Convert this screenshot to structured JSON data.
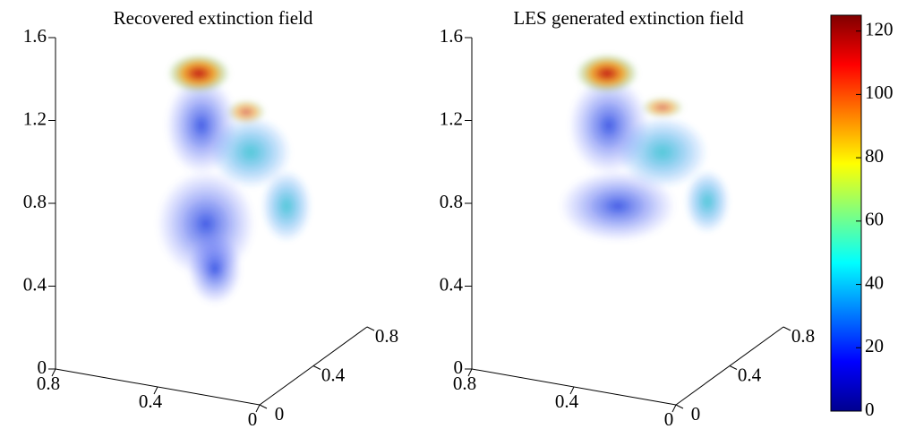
{
  "chart_data": [
    {
      "type": "volume",
      "title": "Recovered extinction field",
      "zlim": [
        0,
        1.6
      ],
      "zticks": [
        0,
        0.4,
        0.8,
        1.2,
        1.6
      ],
      "xlim": [
        0,
        0.8
      ],
      "xticks": [
        0,
        0.4,
        0.8
      ],
      "ylim": [
        0,
        0.8
      ],
      "yticks": [
        0,
        0.4,
        0.8
      ]
    },
    {
      "type": "volume",
      "title": "LES generated extinction field",
      "zlim": [
        0,
        1.6
      ],
      "zticks": [
        0,
        0.4,
        0.8,
        1.2,
        1.6
      ],
      "xlim": [
        0,
        0.8
      ],
      "xticks": [
        0,
        0.4,
        0.8
      ],
      "ylim": [
        0,
        0.8
      ],
      "yticks": [
        0,
        0.4,
        0.8
      ]
    },
    {
      "type": "colorbar",
      "ylim": [
        0,
        125
      ],
      "yticks": [
        0,
        20,
        40,
        60,
        80,
        100,
        120
      ]
    }
  ]
}
